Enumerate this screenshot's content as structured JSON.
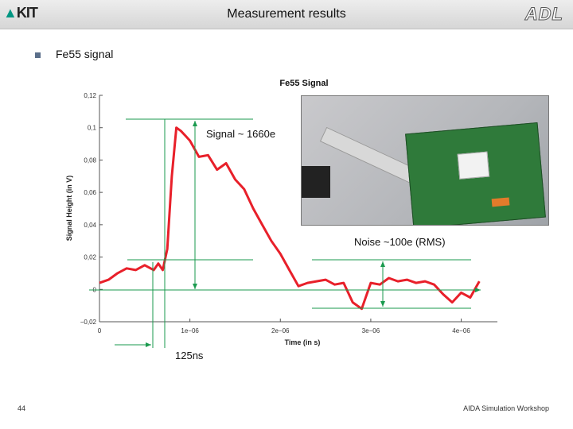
{
  "header": {
    "title": "Measurement results",
    "logo_left": "KIT",
    "logo_right": "ADL"
  },
  "bullet": {
    "text": "Fe55 signal"
  },
  "chart_data": {
    "type": "line",
    "title": "Fe55 Signal",
    "xlabel": "Time (in s)",
    "ylabel": "Signal Height (in V)",
    "xlim": [
      0,
      4.4e-06
    ],
    "ylim": [
      -0.02,
      0.12
    ],
    "xticks": [
      0,
      1e-06,
      2e-06,
      3e-06,
      4e-06
    ],
    "xtick_labels": [
      "0",
      "1e−06",
      "2e−06",
      "3e−06",
      "4e−06"
    ],
    "yticks": [
      -0.02,
      0,
      0.02,
      0.04,
      0.06,
      0.08,
      0.1,
      0.12
    ],
    "ytick_labels": [
      "−0,02",
      "0",
      "0,02",
      "0,04",
      "0,06",
      "0,08",
      "0,1",
      "0,12"
    ],
    "series": [
      {
        "color": "#e8202a",
        "x": [
          0,
          1e-07,
          2e-07,
          3e-07,
          4e-07,
          5e-07,
          6e-07,
          6.5e-07,
          7e-07,
          7.5e-07,
          8e-07,
          8.5e-07,
          9e-07,
          9.5e-07,
          1e-06,
          1.1e-06,
          1.2e-06,
          1.3e-06,
          1.4e-06,
          1.5e-06,
          1.6e-06,
          1.7e-06,
          1.8e-06,
          1.9e-06,
          2e-06,
          2.1e-06,
          2.2e-06,
          2.3e-06,
          2.4e-06,
          2.5e-06,
          2.6e-06,
          2.7e-06,
          2.8e-06,
          2.9e-06,
          3e-06,
          3.1e-06,
          3.2e-06,
          3.3e-06,
          3.4e-06,
          3.5e-06,
          3.6e-06,
          3.7e-06,
          3.8e-06,
          3.9e-06,
          4e-06,
          4.1e-06,
          4.2e-06
        ],
        "y": [
          0.004,
          0.006,
          0.01,
          0.013,
          0.012,
          0.015,
          0.012,
          0.016,
          0.012,
          0.025,
          0.07,
          0.1,
          0.098,
          0.095,
          0.092,
          0.082,
          0.083,
          0.074,
          0.078,
          0.068,
          0.062,
          0.05,
          0.04,
          0.03,
          0.022,
          0.012,
          0.002,
          0.004,
          0.005,
          0.006,
          0.003,
          0.004,
          -0.008,
          -0.012,
          0.004,
          0.003,
          0.007,
          0.005,
          0.006,
          0.004,
          0.005,
          0.003,
          -0.003,
          -0.008,
          -0.002,
          -0.005,
          0.005
        ]
      }
    ],
    "grid": false
  },
  "annotations": {
    "signal": "Signal ~ 1660e",
    "noise": "Noise ~100e (RMS)",
    "rise": "125ns"
  },
  "footer": {
    "page": "44",
    "text": "AIDA Simulation Workshop"
  }
}
